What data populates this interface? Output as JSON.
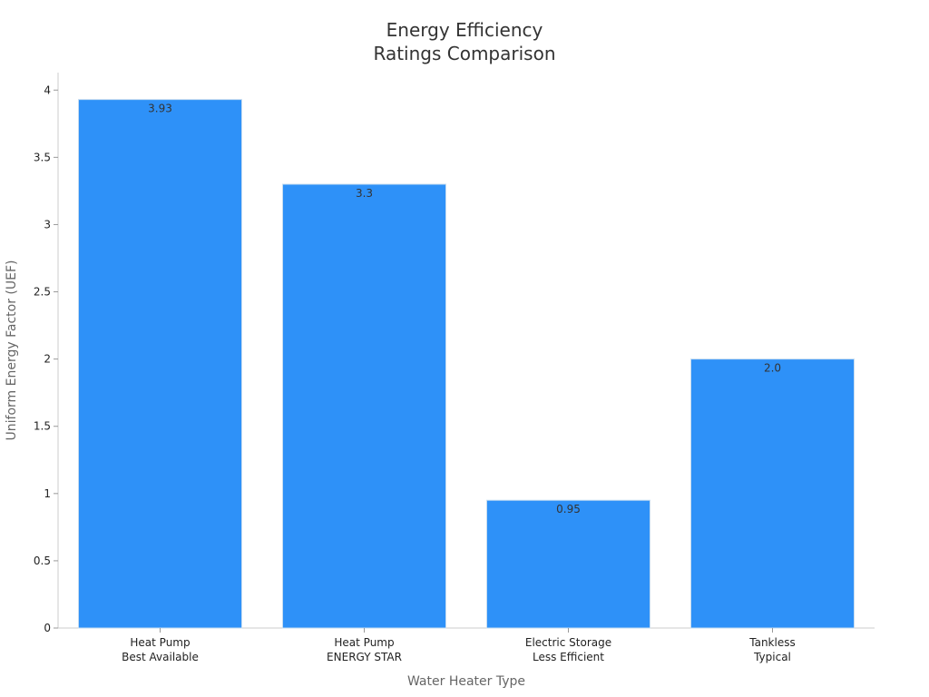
{
  "chart_data": {
    "type": "bar",
    "title": [
      "Energy Efficiency",
      "Ratings Comparison"
    ],
    "xlabel": "Water Heater Type",
    "ylabel": "Uniform Energy Factor (UEF)",
    "categories": [
      [
        "Heat Pump",
        "Best Available"
      ],
      [
        "Heat Pump",
        "ENERGY STAR"
      ],
      [
        "Electric Storage",
        "Less Efficient"
      ],
      [
        "Tankless",
        "Typical"
      ]
    ],
    "values": [
      3.93,
      3.3,
      0.95,
      2.0
    ],
    "data_labels": [
      "3.93",
      "3.3",
      "0.95",
      "2.0"
    ],
    "ylim": [
      0,
      4.13
    ],
    "yticks": [
      0,
      0.5,
      1,
      1.5,
      2,
      2.5,
      3,
      3.5,
      4
    ],
    "ytick_labels": [
      "0",
      "0.5",
      "1",
      "1.5",
      "2",
      "2.5",
      "3",
      "3.5",
      "4"
    ],
    "bar_color": "#2e91f8",
    "bar_edge_color": "#c6dcf0",
    "grid": false,
    "legend": "none"
  }
}
